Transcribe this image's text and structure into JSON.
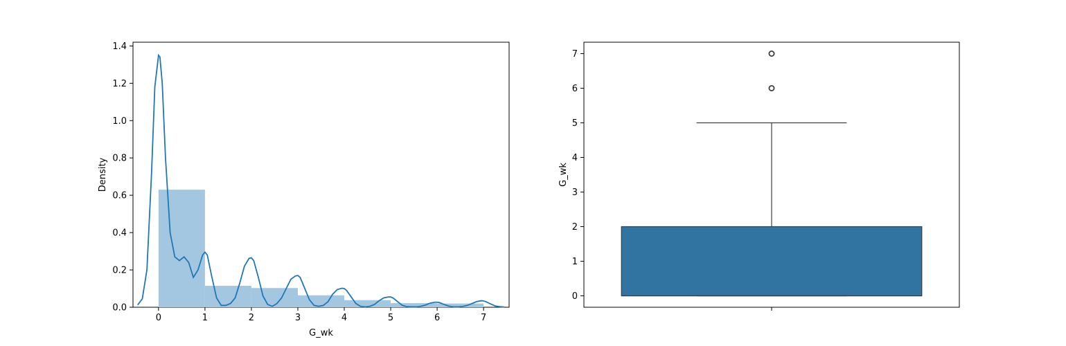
{
  "chart_data": [
    {
      "type": "histogram",
      "xlabel": "G_wk",
      "ylabel": "Density",
      "xlim": [
        -0.55,
        7.55
      ],
      "ylim": [
        0,
        1.42
      ],
      "xticks": [
        0,
        1,
        2,
        3,
        4,
        5,
        6,
        7
      ],
      "yticks": [
        0.0,
        0.2,
        0.4,
        0.6,
        0.8,
        1.0,
        1.2,
        1.4
      ],
      "bars": [
        {
          "x0": 0.0,
          "x1": 1.0,
          "density": 0.63
        },
        {
          "x0": 1.0,
          "x1": 2.0,
          "density": 0.115
        },
        {
          "x0": 2.0,
          "x1": 3.0,
          "density": 0.103
        },
        {
          "x0": 3.0,
          "x1": 4.0,
          "density": 0.064
        },
        {
          "x0": 4.0,
          "x1": 5.0,
          "density": 0.038
        },
        {
          "x0": 5.0,
          "x1": 6.0,
          "density": 0.022
        },
        {
          "x0": 6.0,
          "x1": 7.0,
          "density": 0.02
        }
      ],
      "kde": {
        "x": [
          -0.45,
          -0.35,
          -0.25,
          -0.15,
          -0.08,
          0.0,
          0.03,
          0.08,
          0.15,
          0.25,
          0.35,
          0.45,
          0.55,
          0.65,
          0.75,
          0.85,
          0.95,
          1.0,
          1.05,
          1.15,
          1.25,
          1.35,
          1.45,
          1.55,
          1.65,
          1.75,
          1.85,
          1.95,
          2.0,
          2.05,
          2.15,
          2.25,
          2.35,
          2.45,
          2.55,
          2.65,
          2.75,
          2.85,
          2.95,
          3.0,
          3.05,
          3.15,
          3.25,
          3.35,
          3.45,
          3.55,
          3.65,
          3.75,
          3.85,
          3.95,
          4.0,
          4.05,
          4.15,
          4.25,
          4.35,
          4.45,
          4.55,
          4.65,
          4.75,
          4.85,
          4.95,
          5.0,
          5.05,
          5.15,
          5.25,
          5.35,
          5.45,
          5.55,
          5.65,
          5.75,
          5.85,
          5.95,
          6.0,
          6.05,
          6.15,
          6.25,
          6.35,
          6.45,
          6.55,
          6.65,
          6.75,
          6.85,
          6.95,
          7.0,
          7.05,
          7.15,
          7.25,
          7.35,
          7.45
        ],
        "y": [
          0.012,
          0.045,
          0.2,
          0.72,
          1.18,
          1.35,
          1.34,
          1.2,
          0.8,
          0.4,
          0.27,
          0.25,
          0.27,
          0.24,
          0.16,
          0.2,
          0.28,
          0.295,
          0.28,
          0.16,
          0.05,
          0.01,
          0.01,
          0.02,
          0.05,
          0.13,
          0.22,
          0.262,
          0.265,
          0.25,
          0.16,
          0.06,
          0.015,
          0.005,
          0.02,
          0.05,
          0.1,
          0.15,
          0.168,
          0.17,
          0.16,
          0.1,
          0.04,
          0.01,
          0.005,
          0.01,
          0.03,
          0.07,
          0.095,
          0.102,
          0.1,
          0.09,
          0.055,
          0.02,
          0.005,
          0.002,
          0.005,
          0.015,
          0.035,
          0.05,
          0.055,
          0.055,
          0.05,
          0.03,
          0.01,
          0.003,
          0.002,
          0.002,
          0.005,
          0.012,
          0.022,
          0.027,
          0.027,
          0.025,
          0.015,
          0.006,
          0.002,
          0.002,
          0.004,
          0.01,
          0.02,
          0.03,
          0.035,
          0.034,
          0.03,
          0.018,
          0.007,
          0.003,
          0.001
        ]
      },
      "color": "#1f77b4",
      "bar_color": "#a4c7e1",
      "grid": false
    },
    {
      "type": "box",
      "ylabel": "G_wk",
      "ylim": [
        -0.33,
        7.33
      ],
      "yticks": [
        0,
        1,
        2,
        3,
        4,
        5,
        6,
        7
      ],
      "box": {
        "min": 0,
        "q1": 0,
        "median": 0,
        "q3": 2,
        "whisker_high": 5,
        "outliers": [
          6,
          7
        ]
      },
      "color": "#3274a1",
      "grid": false
    }
  ]
}
